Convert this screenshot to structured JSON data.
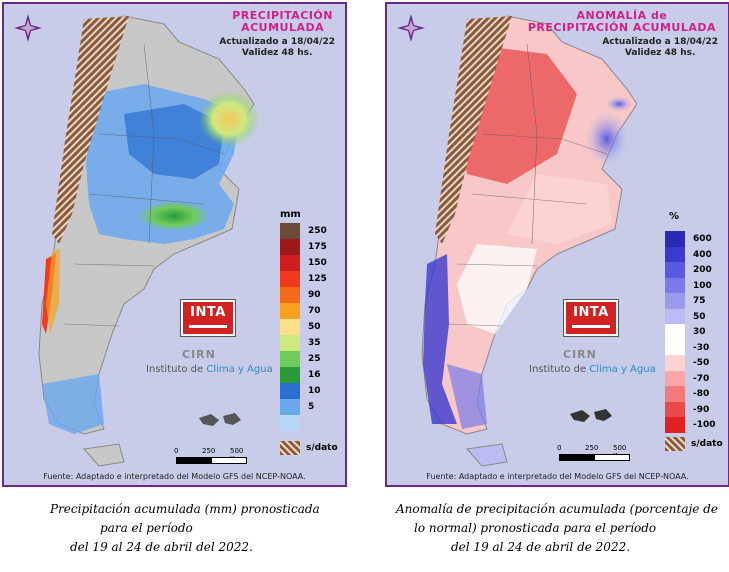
{
  "left_panel": {
    "title_line1": "PRECIPITACIÓN",
    "title_line2": "ACUMULADA",
    "updated": "Actualizado a 18/04/22",
    "validity": "Validez 48 hs.",
    "legend_unit": "mm",
    "legend": [
      {
        "label": "250",
        "color": "#6b4a3a"
      },
      {
        "label": "175",
        "color": "#9e1a1a"
      },
      {
        "label": "150",
        "color": "#d01e1e"
      },
      {
        "label": "125",
        "color": "#f03a1e"
      },
      {
        "label": "90",
        "color": "#f46a1a"
      },
      {
        "label": "70",
        "color": "#f7a21e"
      },
      {
        "label": "50",
        "color": "#fbe08a"
      },
      {
        "label": "35",
        "color": "#cfe880"
      },
      {
        "label": "25",
        "color": "#6fcc5a"
      },
      {
        "label": "16",
        "color": "#2a9a3a"
      },
      {
        "label": "10",
        "color": "#2a6fd0"
      },
      {
        "label": "5",
        "color": "#6aa8ee"
      },
      {
        "label": "",
        "color": "#b8d6f6"
      }
    ],
    "nodata_label": "s/dato",
    "footer": "Fuente: Adaptado e interpretado del Modelo GFS del NCEP-NOAA."
  },
  "right_panel": {
    "title_line1": "ANOMALÍA de",
    "title_line2": "PRECIPITACIÓN ACUMULADA",
    "updated": "Actualizado a 18/04/22",
    "validity": "Validez 48 hs.",
    "legend_unit": "%",
    "legend": [
      {
        "label": "600",
        "color": "#2a2ab8"
      },
      {
        "label": "400",
        "color": "#3a3ad0"
      },
      {
        "label": "200",
        "color": "#5a5ae0"
      },
      {
        "label": "100",
        "color": "#7a7ae8"
      },
      {
        "label": "75",
        "color": "#9a9aee"
      },
      {
        "label": "50",
        "color": "#bcbcf4"
      },
      {
        "label": "30",
        "color": "#ffffff"
      },
      {
        "label": "-30",
        "color": "#ffffff"
      },
      {
        "label": "-50",
        "color": "#fcd2d2"
      },
      {
        "label": "-70",
        "color": "#f8a6a6"
      },
      {
        "label": "-80",
        "color": "#f27a7a"
      },
      {
        "label": "-90",
        "color": "#ea4a4a"
      },
      {
        "label": "-100",
        "color": "#e22020"
      }
    ],
    "nodata_label": "s/dato",
    "footer": "Fuente: Adaptado e interpretado del Modelo GFS del NCEP-NOAA."
  },
  "logo": {
    "inta": "INTA",
    "cirn": "CIRN",
    "instituto_prefix": "Instituto de ",
    "instituto_highlight": "Clima y Agua"
  },
  "scale": {
    "zero": "0",
    "mid": "250",
    "end": "500 Km"
  },
  "captions": {
    "left": [
      "Precipitación acumulada (mm) pronosticada",
      "para el período",
      "del 19 al 24 de abril del 2022."
    ],
    "right": [
      "Anomalía de precipitación acumulada (porcentaje de",
      "lo normal) pronosticada para el período",
      "del 19 al 24 de abril de 2022."
    ]
  }
}
